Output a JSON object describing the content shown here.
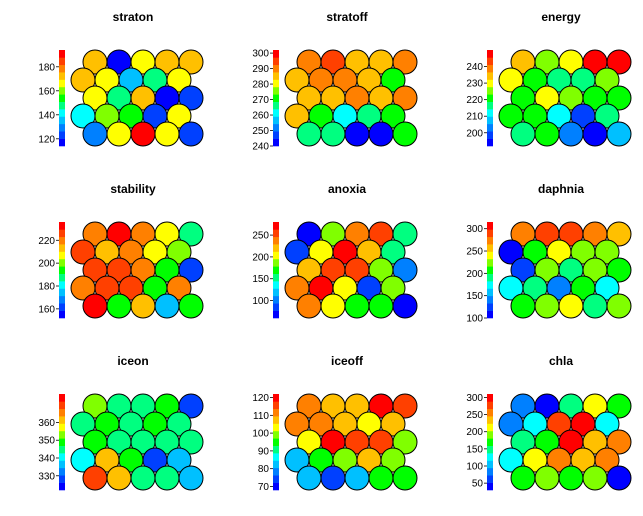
{
  "chart_data": {
    "type": "heatmap",
    "description_type": "som-property-maps",
    "grid": {
      "rows": 5,
      "cols": 5,
      "layout": "hexagonal"
    },
    "colormap": [
      "#0000ff",
      "#0040ff",
      "#0080ff",
      "#00c0ff",
      "#00ffff",
      "#00ff80",
      "#00ff00",
      "#80ff00",
      "#ffff00",
      "#ffc000",
      "#ff8000",
      "#ff4000",
      "#ff0000"
    ],
    "panels": [
      {
        "title": "straton",
        "ticks": [
          120,
          140,
          160,
          180
        ],
        "range": [
          114,
          194
        ],
        "cells": [
          [
            174,
            118,
            164,
            174,
            172
          ],
          [
            174,
            164,
            133,
            150,
            165
          ],
          [
            166,
            148,
            172,
            116,
            126
          ],
          [
            140,
            158,
            157,
            123,
            168
          ],
          [
            128,
            168,
            189,
            164,
            122
          ]
        ]
      },
      {
        "title": "stratoff",
        "ticks": [
          240,
          250,
          260,
          270,
          280,
          290,
          300
        ],
        "range": [
          240,
          302
        ],
        "cells": [
          [
            292,
            294,
            285,
            286,
            288
          ],
          [
            285,
            288,
            290,
            283,
            272
          ],
          [
            283,
            286,
            288,
            284,
            292
          ],
          [
            287,
            272,
            260,
            267,
            272
          ],
          [
            268,
            265,
            240,
            242,
            270
          ]
        ]
      },
      {
        "title": "energy",
        "ticks": [
          200,
          210,
          220,
          230,
          240
        ],
        "range": [
          192,
          250
        ],
        "cells": [
          [
            236,
            225,
            232,
            246,
            248
          ],
          [
            232,
            222,
            218,
            218,
            226
          ],
          [
            220,
            230,
            226,
            221,
            220
          ],
          [
            223,
            221,
            212,
            200,
            218
          ],
          [
            216,
            222,
            205,
            190,
            208
          ]
        ]
      },
      {
        "title": "stability",
        "ticks": [
          160,
          180,
          200,
          220
        ],
        "range": [
          152,
          236
        ],
        "cells": [
          [
            222,
            232,
            220,
            204,
            190
          ],
          [
            224,
            212,
            218,
            209,
            202
          ],
          [
            226,
            224,
            223,
            194,
            162
          ],
          [
            218,
            228,
            226,
            196,
            222
          ],
          [
            232,
            196,
            215,
            175,
            196
          ]
        ]
      },
      {
        "title": "anoxia",
        "ticks": [
          100,
          150,
          200,
          250
        ],
        "range": [
          60,
          280
        ],
        "cells": [
          [
            70,
            188,
            246,
            250,
            150
          ],
          [
            90,
            202,
            270,
            225,
            160
          ],
          [
            225,
            255,
            262,
            190,
            110
          ],
          [
            230,
            270,
            212,
            80,
            194
          ],
          [
            230,
            210,
            170,
            172,
            70
          ]
        ]
      },
      {
        "title": "daphnia",
        "ticks": [
          100,
          150,
          200,
          250,
          300
        ],
        "range": [
          100,
          315
        ],
        "cells": [
          [
            274,
            297,
            285,
            275,
            258
          ],
          [
            112,
            208,
            242,
            232,
            226
          ],
          [
            120,
            218,
            195,
            222,
            210
          ],
          [
            170,
            192,
            140,
            203,
            180
          ],
          [
            200,
            218,
            244,
            198,
            222
          ]
        ]
      },
      {
        "title": "iceon",
        "ticks": [
          330,
          340,
          350,
          360
        ],
        "range": [
          322,
          376
        ],
        "cells": [
          [
            352,
            346,
            344,
            348,
            330
          ],
          [
            346,
            350,
            346,
            348,
            345
          ],
          [
            350,
            346,
            346,
            346,
            344
          ],
          [
            342,
            360,
            348,
            330,
            336
          ],
          [
            370,
            362,
            346,
            344,
            336
          ]
        ]
      },
      {
        "title": "iceoff",
        "ticks": [
          70,
          80,
          90,
          100,
          110,
          120
        ],
        "range": [
          68,
          122
        ],
        "cells": [
          [
            110,
            106,
            106,
            118,
            117
          ],
          [
            113,
            110,
            108,
            104,
            108
          ],
          [
            104,
            118,
            114,
            115,
            98
          ],
          [
            84,
            96,
            100,
            106,
            100
          ],
          [
            84,
            74,
            84,
            94,
            96
          ]
        ]
      },
      {
        "title": "chla",
        "ticks": [
          50,
          100,
          150,
          200,
          250,
          300
        ],
        "range": [
          30,
          310
        ],
        "cells": [
          [
            80,
            40,
            140,
            210,
            180
          ],
          [
            80,
            132,
            280,
            290,
            120
          ],
          [
            140,
            170,
            290,
            240,
            255
          ],
          [
            120,
            220,
            255,
            240,
            250
          ],
          [
            180,
            190,
            172,
            200,
            40
          ]
        ]
      }
    ]
  }
}
